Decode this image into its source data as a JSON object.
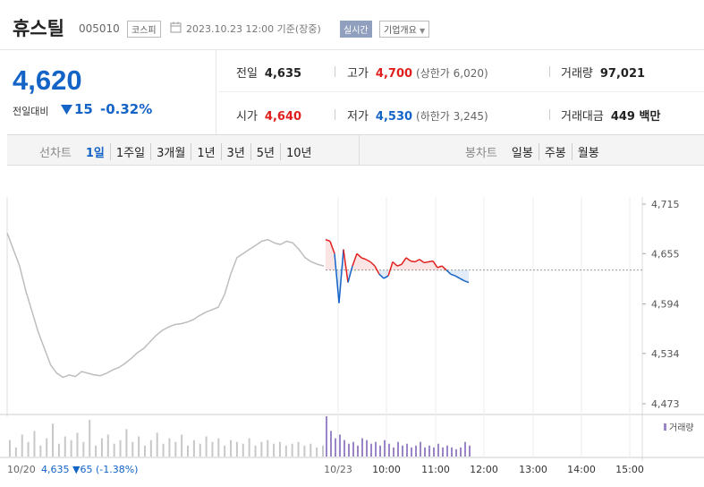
{
  "header": {
    "name": "휴스틸",
    "code": "005010",
    "market": "코스피",
    "datetime": "2023.10.23 12:00 기준(장중)",
    "realtime": "실시간",
    "company_info": "기업개요"
  },
  "summary": {
    "price": "4,620",
    "change_label": "전일대비",
    "change_value": "15",
    "change_pct": "-0.32%"
  },
  "stats": {
    "prev_close_label": "전일",
    "prev_close": "4,635",
    "high_label": "고가",
    "high": "4,700",
    "upper_limit": "(상한가 6,020)",
    "volume_label": "거래량",
    "volume": "97,021",
    "open_label": "시가",
    "open": "4,640",
    "low_label": "저가",
    "low": "4,530",
    "lower_limit": "(하한가 3,245)",
    "amount_label": "거래대금",
    "amount": "449 백만"
  },
  "tabs": {
    "line_title": "선차트",
    "line_tabs": [
      "1일",
      "1주일",
      "3개월",
      "1년",
      "3년",
      "5년",
      "10년"
    ],
    "candle_title": "봉차트",
    "candle_tabs": [
      "일봉",
      "주봉",
      "월봉"
    ]
  },
  "colors": {
    "up": "#e0201e",
    "down": "#1463c7",
    "prev": "#bdbdbd"
  },
  "chart_data": {
    "type": "line",
    "y_ticks": [
      "4,715",
      "4,655",
      "4,594",
      "4,534",
      "4,473"
    ],
    "ylim": [
      4473,
      4715
    ],
    "x_ticks": [
      "10/23",
      "10:00",
      "11:00",
      "12:00",
      "13:00",
      "14:00",
      "15:00"
    ],
    "volume_label": "거래량",
    "prev_day_label": "10/20",
    "prev_day_info": "4,635 ▼65 (-1.38%)",
    "base": 4635,
    "series": [
      {
        "values": [
          4680,
          4660,
          4640,
          4610,
          4585,
          4560,
          4540,
          4520,
          4510,
          4505,
          4508,
          4506,
          4512,
          4510,
          4508,
          4507,
          4510,
          4514,
          4517,
          4522,
          4528,
          4535,
          4540,
          4548,
          4556,
          4562,
          4566,
          4569,
          4570,
          4572,
          4575,
          4580,
          4584,
          4587,
          4590,
          4605,
          4630,
          4650,
          4655,
          4660,
          4665,
          4670,
          4672,
          4668,
          4666,
          4670,
          4668,
          4660,
          4650,
          4645,
          4642,
          4640
        ]
      },
      {
        "values": [
          4672,
          4670,
          4655,
          4595,
          4660,
          4620,
          4640,
          4655,
          4650,
          4648,
          4645,
          4640,
          4630,
          4625,
          4628,
          4645,
          4640,
          4642,
          4650,
          4646,
          4645,
          4648,
          4644,
          4645,
          4646,
          4638,
          4640,
          4635,
          4630,
          4628,
          4625,
          4622,
          4620
        ]
      }
    ],
    "volume": {
      "prev": [
        9,
        5,
        12,
        8,
        14,
        6,
        10,
        18,
        7,
        11,
        9,
        13,
        8,
        20,
        6,
        10,
        12,
        7,
        9,
        15,
        8,
        11,
        6,
        9,
        13,
        7,
        10,
        8,
        12,
        6,
        9,
        7,
        11,
        8,
        10,
        6,
        9,
        8,
        7,
        10,
        6,
        8,
        9,
        7,
        8,
        6,
        7,
        8,
        6,
        7,
        5,
        6
      ],
      "today": [
        22,
        14,
        10,
        12,
        9,
        7,
        8,
        6,
        10,
        9,
        7,
        8,
        6,
        9,
        7,
        5,
        8,
        6,
        7,
        5,
        6,
        8,
        5,
        6,
        5,
        7,
        5,
        6,
        5,
        4,
        5,
        8,
        6
      ]
    }
  }
}
